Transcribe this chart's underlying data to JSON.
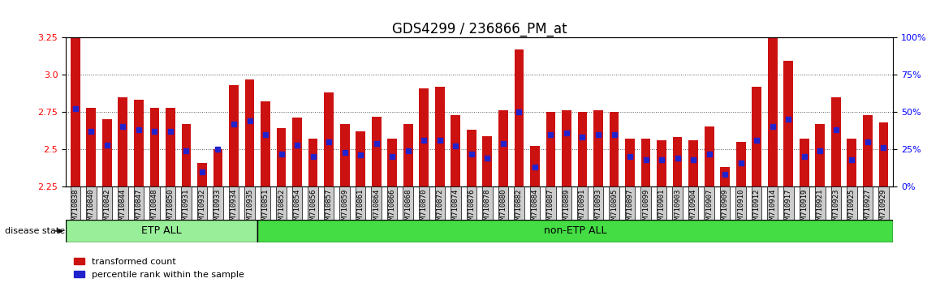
{
  "title": "GDS4299 / 236866_PM_at",
  "samples": [
    "GSM710838",
    "GSM710840",
    "GSM710842",
    "GSM710844",
    "GSM710847",
    "GSM710848",
    "GSM710850",
    "GSM710931",
    "GSM710932",
    "GSM710933",
    "GSM710934",
    "GSM710935",
    "GSM710851",
    "GSM710852",
    "GSM710854",
    "GSM710856",
    "GSM710857",
    "GSM710859",
    "GSM710861",
    "GSM710864",
    "GSM710866",
    "GSM710868",
    "GSM710870",
    "GSM710872",
    "GSM710874",
    "GSM710876",
    "GSM710878",
    "GSM710880",
    "GSM710882",
    "GSM710884",
    "GSM710887",
    "GSM710889",
    "GSM710891",
    "GSM710893",
    "GSM710895",
    "GSM710897",
    "GSM710899",
    "GSM710901",
    "GSM710903",
    "GSM710904",
    "GSM710907",
    "GSM710909",
    "GSM710910",
    "GSM710912",
    "GSM710914",
    "GSM710917",
    "GSM710919",
    "GSM710921",
    "GSM710923",
    "GSM710925",
    "GSM710927",
    "GSM710929"
  ],
  "bar_values": [
    3.25,
    2.78,
    2.7,
    2.85,
    2.83,
    2.78,
    2.78,
    2.67,
    2.41,
    2.5,
    2.93,
    2.97,
    2.82,
    2.64,
    2.71,
    2.57,
    2.88,
    2.67,
    2.62,
    2.72,
    2.57,
    2.67,
    2.91,
    2.92,
    2.73,
    2.63,
    2.59,
    2.76,
    3.17,
    2.52,
    2.75,
    2.76,
    2.75,
    2.76,
    2.75,
    2.57,
    2.57,
    2.56,
    2.58,
    2.56,
    2.65,
    2.38,
    2.55,
    2.92,
    3.25,
    3.09,
    2.57,
    2.67,
    2.85,
    2.57,
    2.73,
    2.68
  ],
  "percentile_values": [
    2.77,
    2.62,
    2.53,
    2.65,
    2.63,
    2.62,
    2.62,
    2.49,
    2.35,
    2.5,
    2.67,
    2.69,
    2.6,
    2.47,
    2.53,
    2.45,
    2.55,
    2.48,
    2.46,
    2.54,
    2.45,
    2.49,
    2.56,
    2.56,
    2.52,
    2.47,
    2.44,
    2.54,
    2.75,
    2.38,
    2.6,
    2.61,
    2.58,
    2.6,
    2.6,
    2.45,
    2.43,
    2.43,
    2.44,
    2.43,
    2.47,
    2.33,
    2.41,
    2.56,
    2.65,
    2.7,
    2.45,
    2.49,
    2.63,
    2.43,
    2.55,
    2.51
  ],
  "etp_count": 12,
  "ylim": [
    2.25,
    3.25
  ],
  "yticks": [
    2.25,
    2.5,
    2.75,
    3.0,
    3.25
  ],
  "y_right_ticks": [
    0,
    25,
    50,
    75,
    100
  ],
  "y_right_tick_positions": [
    2.25,
    2.5,
    2.75,
    3.0,
    3.25
  ],
  "bar_color": "#cc1111",
  "dot_color": "#2222cc",
  "bar_width": 0.6,
  "etp_color": "#99ee99",
  "non_etp_color": "#44dd44",
  "tick_label_bg": "#cccccc",
  "grid_color": "#555555",
  "title_fontsize": 12,
  "tick_fontsize": 6.5,
  "legend_fontsize": 8
}
